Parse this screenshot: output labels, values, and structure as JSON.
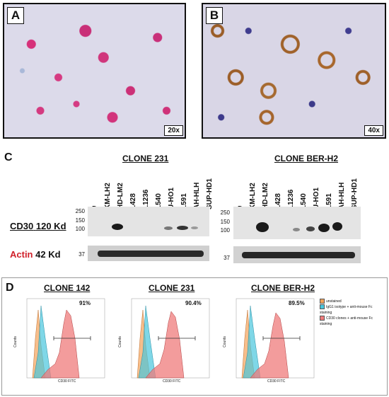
{
  "panel_a": {
    "letter": "A",
    "magnification": "20x"
  },
  "panel_b": {
    "letter": "B",
    "magnification": "40x"
  },
  "panel_c": {
    "letter": "C",
    "clones": [
      {
        "title": "CLONE 231"
      },
      {
        "title": "CLONE BER-H2"
      }
    ],
    "lanes": [
      "D",
      "KM-LH2",
      "HD-LM2",
      "L428",
      "L1236",
      "L540",
      "U-HO1",
      "L591",
      "AH-HLH",
      "SUP-HD1"
    ],
    "mw_labels": [
      "250",
      "150",
      "100",
      "37"
    ],
    "cd30_label": {
      "name": "CD30",
      "size": "120 Kd"
    },
    "actin_label": {
      "name": "Actin",
      "size": "42 Kd"
    }
  },
  "panel_d": {
    "letter": "D",
    "plots": [
      {
        "title": "CLONE 142",
        "percent": "91%",
        "xlabel": "CD30 FITC",
        "ylabel": "Counts"
      },
      {
        "title": "CLONE 231",
        "percent": "90.4%",
        "xlabel": "CD30 FITC",
        "ylabel": "Counts"
      },
      {
        "title": "CLONE BER-H2",
        "percent": "89.5%",
        "xlabel": "CD30 FITC",
        "ylabel": "Counts"
      }
    ],
    "legend": [
      {
        "label": "unstained",
        "color": "#f3a35a"
      },
      {
        "label": "IgG1 isotype + anti-mouse Fc staining",
        "color": "#49c6dd"
      },
      {
        "label": "CD30 clones + anti-mouse Fc staining",
        "color": "#ef7b7b"
      }
    ]
  }
}
